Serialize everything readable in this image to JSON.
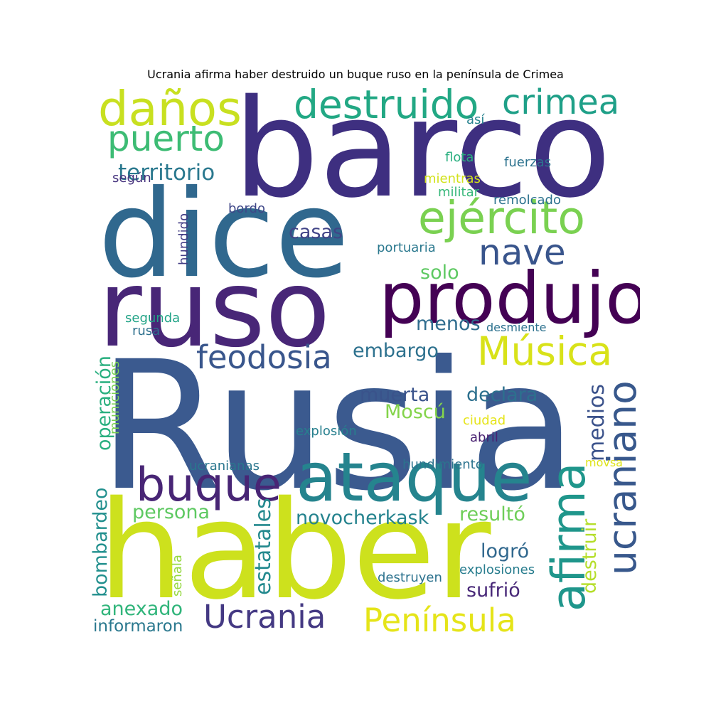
{
  "title": "Ucrania afirma haber destruido un buque ruso en la península de Crimea",
  "words": [
    {
      "id": "rusia",
      "text": "Rusia",
      "color": "#3b5a8f"
    },
    {
      "id": "haber",
      "text": "haber",
      "color": "#cde11d"
    },
    {
      "id": "barco",
      "text": "barco",
      "color": "#3e2f80"
    },
    {
      "id": "dice",
      "text": "dice",
      "color": "#30688e"
    },
    {
      "id": "ruso",
      "text": "ruso",
      "color": "#482677"
    },
    {
      "id": "produjo",
      "text": "produjo",
      "color": "#440154"
    },
    {
      "id": "ataque",
      "text": "ataque",
      "color": "#25848e"
    },
    {
      "id": "ucraniano",
      "text": "ucraniano",
      "color": "#38588c"
    },
    {
      "id": "afirma",
      "text": "afirma",
      "color": "#1f968b"
    },
    {
      "id": "danos",
      "text": "daños",
      "color": "#c8e020"
    },
    {
      "id": "destruido",
      "text": "destruido",
      "color": "#22a884"
    },
    {
      "id": "crimea",
      "text": "crimea",
      "color": "#1fa088"
    },
    {
      "id": "ejercito",
      "text": "ejército",
      "color": "#7ad151"
    },
    {
      "id": "nave",
      "text": "nave",
      "color": "#39558c"
    },
    {
      "id": "puerto",
      "text": "puerto",
      "color": "#3dbc74"
    },
    {
      "id": "territorio",
      "text": "territorio",
      "color": "#2a788e"
    },
    {
      "id": "musica",
      "text": "Música",
      "color": "#d8e219"
    },
    {
      "id": "feodosia",
      "text": "feodosia",
      "color": "#39568c"
    },
    {
      "id": "buque",
      "text": "buque",
      "color": "#482575"
    },
    {
      "id": "ucrania",
      "text": "Ucrania",
      "color": "#443983"
    },
    {
      "id": "peninsula",
      "text": "Península",
      "color": "#e5e419"
    },
    {
      "id": "casas",
      "text": "casas",
      "color": "#414487"
    },
    {
      "id": "solo",
      "text": "solo",
      "color": "#5ec962"
    },
    {
      "id": "menos",
      "text": "menos",
      "color": "#2f6c8e"
    },
    {
      "id": "embargo",
      "text": "embargo",
      "color": "#2d718e"
    },
    {
      "id": "muerta",
      "text": "muerta",
      "color": "#3a538b"
    },
    {
      "id": "declara",
      "text": "declara",
      "color": "#2d708e"
    },
    {
      "id": "moscu",
      "text": "Moscú",
      "color": "#84d44b"
    },
    {
      "id": "operacion",
      "text": "operación",
      "color": "#29af7f"
    },
    {
      "id": "municiones",
      "text": "municiones",
      "color": "#7ad151"
    },
    {
      "id": "medios",
      "text": "medios",
      "color": "#3b528b"
    },
    {
      "id": "persona",
      "text": "persona",
      "color": "#5ec962"
    },
    {
      "id": "novocherkask",
      "text": "novocherkask",
      "color": "#25838e"
    },
    {
      "id": "resulto",
      "text": "resultó",
      "color": "#6ece58"
    },
    {
      "id": "logro",
      "text": "logró",
      "color": "#31688e"
    },
    {
      "id": "sufrio",
      "text": "sufrió",
      "color": "#482878"
    },
    {
      "id": "estatales",
      "text": "estatales",
      "color": "#23898e"
    },
    {
      "id": "bombardeo",
      "text": "bombardeo",
      "color": "#218f8d"
    },
    {
      "id": "anexado",
      "text": "anexado",
      "color": "#31b57b"
    },
    {
      "id": "informaron",
      "text": "informaron",
      "color": "#2a788e"
    },
    {
      "id": "destruir",
      "text": "destruir",
      "color": "#b5de2b"
    },
    {
      "id": "explosiones",
      "text": "explosiones",
      "color": "#287d8e"
    },
    {
      "id": "destruyen",
      "text": "destruyen",
      "color": "#2c728e"
    },
    {
      "id": "senala",
      "text": "señala",
      "color": "#95d840"
    },
    {
      "id": "asi",
      "text": "así",
      "color": "#26828e"
    },
    {
      "id": "flota",
      "text": "flota",
      "color": "#29af7f"
    },
    {
      "id": "fuerzas",
      "text": "fuerzas",
      "color": "#2c728e"
    },
    {
      "id": "segun",
      "text": "según",
      "color": "#46337e"
    },
    {
      "id": "mientras",
      "text": "mientras",
      "color": "#d2e21b"
    },
    {
      "id": "militar",
      "text": "militar",
      "color": "#35b779"
    },
    {
      "id": "remolcado",
      "text": "remolcado",
      "color": "#2c728e"
    },
    {
      "id": "hundido",
      "text": "hundido",
      "color": "#433e85"
    },
    {
      "id": "bordo",
      "text": "bordo",
      "color": "#3f4788"
    },
    {
      "id": "portuaria",
      "text": "portuaria",
      "color": "#2a788e"
    },
    {
      "id": "segunda",
      "text": "segunda",
      "color": "#20a386"
    },
    {
      "id": "rusa",
      "text": "rusa",
      "color": "#2d708e"
    },
    {
      "id": "desmiente",
      "text": "desmiente",
      "color": "#2c718e"
    },
    {
      "id": "explosion",
      "text": "explosión",
      "color": "#277f8e"
    },
    {
      "id": "ciudad",
      "text": "ciudad",
      "color": "#e5e419"
    },
    {
      "id": "abril",
      "text": "abril",
      "color": "#482071"
    },
    {
      "id": "ucranianas",
      "text": "ucranianas",
      "color": "#2a768e"
    },
    {
      "id": "hundimiento",
      "text": "hundimiento",
      "color": "#2c738e"
    },
    {
      "id": "movsa",
      "text": "movsa",
      "color": "#dde318"
    }
  ]
}
